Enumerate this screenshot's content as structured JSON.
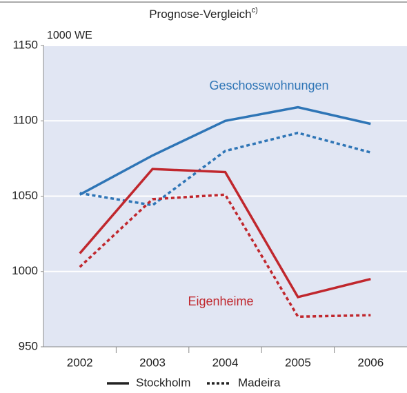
{
  "chart_data": {
    "type": "line",
    "title": "Prognose-Vergleich",
    "title_note": "c)",
    "y_label": "1000 WE",
    "categories": [
      "2002",
      "2003",
      "2004",
      "2005",
      "2006"
    ],
    "ylim": [
      950,
      1150
    ],
    "yticks": [
      950,
      1000,
      1050,
      1100,
      1150
    ],
    "grid": true,
    "line_styles": [
      {
        "name": "Stockholm",
        "dash": "none"
      },
      {
        "name": "Madeira",
        "dash": "5 4"
      }
    ],
    "series": [
      {
        "name": "Geschosswohnungen",
        "color": "#2e75b6",
        "lines": [
          {
            "values": [
              1051,
              1077,
              1100,
              1109,
              1098
            ]
          },
          {
            "values": [
              1052,
              1044,
              1080,
              1092,
              1079
            ]
          }
        ]
      },
      {
        "name": "Eigenheime",
        "color": "#c0272d",
        "lines": [
          {
            "values": [
              1012,
              1068,
              1066,
              983,
              995
            ]
          },
          {
            "values": [
              1003,
              1048,
              1051,
              970,
              971
            ]
          }
        ]
      }
    ]
  }
}
